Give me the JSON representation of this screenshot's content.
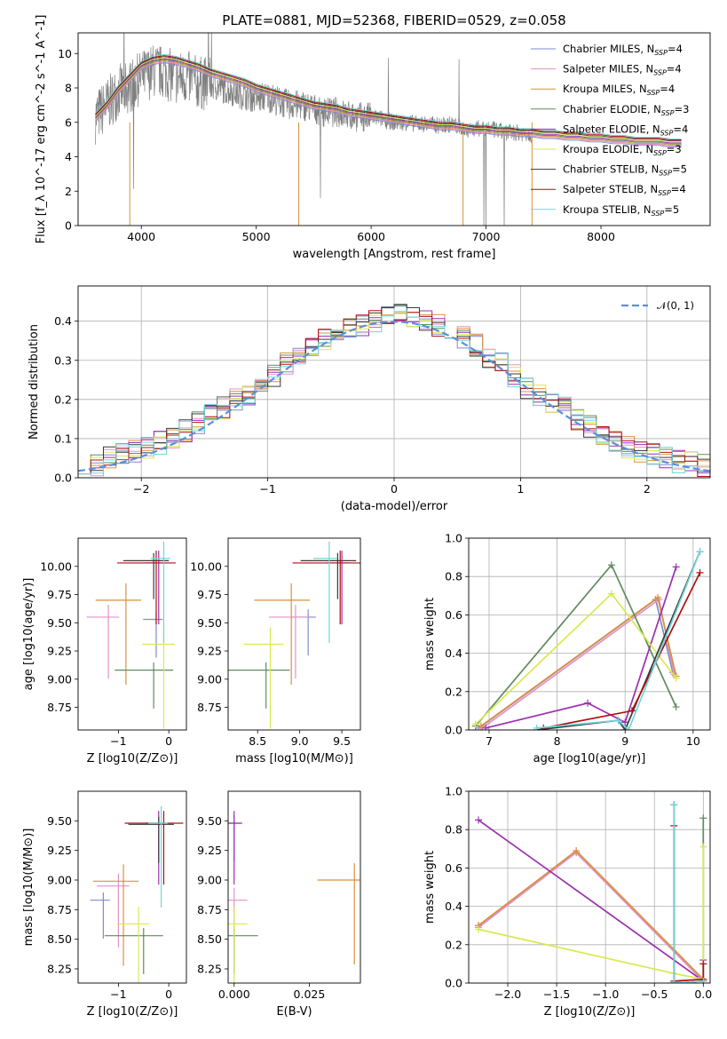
{
  "figure": {
    "title": "PLATE=0881, MJD=52368, FIBERID=0529, z=0.058"
  },
  "legend_labels": [
    "Chabrier MILES, N_SSP=4",
    "Salpeter MILES, N_SSP=4",
    "Kroupa MILES, N_SSP=4",
    "Chabrier ELODIE, N_SSP=3",
    "Salpeter ELODIE, N_SSP=4",
    "Kroupa ELODIE, N_SSP=3",
    "Chabrier STELIB, N_SSP=5",
    "Salpeter STELIB, N_SSP=4",
    "Kroupa STELIB, N_SSP=5"
  ],
  "colors": {
    "data": "#808080",
    "models": [
      "#7e8cc8",
      "#e392c8",
      "#d9913c",
      "#5e8c5e",
      "#9b2fae",
      "#d9e94d",
      "#3a3a3a",
      "#b01010",
      "#6fd6dc"
    ],
    "gauss": "#5b8fd9"
  },
  "chart_data": [
    {
      "id": "spectrum",
      "type": "line",
      "xlabel": "wavelength [Angstrom, rest frame]",
      "ylabel": "Flux [f_λ 10^-17 erg cm^-2 s^-1 A^-1]",
      "xlim": [
        3450,
        8950
      ],
      "ylim": [
        0,
        11.2
      ],
      "xticks": [
        "4000",
        "5000",
        "6000",
        "7000",
        "8000"
      ],
      "yticks": [
        "0",
        "2",
        "4",
        "6",
        "8",
        "10"
      ],
      "grid": false,
      "legend_position": "upper-right",
      "data_series": {
        "name": "data",
        "x": [
          3600,
          3700,
          3800,
          3900,
          4000,
          4100,
          4200,
          4300,
          4400,
          4500,
          4600,
          4700,
          4800,
          4900,
          5000,
          5100,
          5200,
          5300,
          5400,
          5500,
          5600,
          5700,
          5800,
          5900,
          6000,
          6100,
          6200,
          6300,
          6400,
          6500,
          6600,
          6700,
          6800,
          6900,
          7000,
          7100,
          7200,
          7300,
          7400
        ],
        "y": [
          6.3,
          7.0,
          7.8,
          8.1,
          8.6,
          9.0,
          8.9,
          8.6,
          8.6,
          8.3,
          8.2,
          8.0,
          7.8,
          7.6,
          7.4,
          7.5,
          7.2,
          7.0,
          7.0,
          6.8,
          6.6,
          6.6,
          6.4,
          6.3,
          6.3,
          6.2,
          6.0,
          6.0,
          5.9,
          5.9,
          5.8,
          5.9,
          5.6,
          5.6,
          5.7,
          5.5,
          5.4,
          5.4,
          5.3
        ]
      },
      "model_curve": {
        "x": [
          3600,
          3700,
          3800,
          3900,
          4000,
          4100,
          4200,
          4300,
          4400,
          4500,
          4600,
          4700,
          4800,
          4900,
          5000,
          5100,
          5200,
          5300,
          5400,
          5500,
          5600,
          5700,
          5800,
          5900,
          6000,
          6100,
          6200,
          6300,
          6400,
          6500,
          6600,
          6700,
          6800,
          6900,
          7000,
          7100,
          7200,
          7300,
          7400,
          7500,
          7600,
          7700,
          7800,
          7900,
          8000,
          8100,
          8200,
          8300,
          8400,
          8500,
          8600,
          8700
        ],
        "y": [
          6.3,
          7.0,
          7.9,
          8.6,
          9.3,
          9.6,
          9.7,
          9.6,
          9.4,
          9.2,
          8.9,
          8.7,
          8.5,
          8.3,
          8.0,
          7.8,
          7.6,
          7.4,
          7.2,
          7.0,
          6.9,
          6.8,
          6.6,
          6.5,
          6.4,
          6.3,
          6.2,
          6.1,
          6.0,
          5.9,
          5.8,
          5.8,
          5.7,
          5.6,
          5.6,
          5.5,
          5.5,
          5.4,
          5.4,
          5.3,
          5.3,
          5.2,
          5.2,
          5.1,
          5.1,
          5.0,
          5.0,
          4.9,
          4.9,
          4.9,
          4.8,
          4.8
        ]
      }
    },
    {
      "id": "residuals",
      "type": "line",
      "xlabel": "(data-model)/error",
      "ylabel": "Normed distribution",
      "xlim": [
        -2.5,
        2.5
      ],
      "ylim": [
        0,
        0.49
      ],
      "xticks": [
        "−2",
        "−1",
        "0",
        "1",
        "2"
      ],
      "yticks": [
        "0.0",
        "0.1",
        "0.2",
        "0.3",
        "0.4"
      ],
      "grid": true,
      "legend_label": "𝒩(0, 1)",
      "legend_position": "upper-right",
      "bin_width": 0.1,
      "hist_base": [
        0.04,
        0.03,
        0.05,
        0.06,
        0.07,
        0.08,
        0.09,
        0.1,
        0.12,
        0.14,
        0.16,
        0.18,
        0.2,
        0.21,
        0.23,
        0.26,
        0.29,
        0.31,
        0.33,
        0.35,
        0.37,
        0.38,
        0.39,
        0.4,
        0.41,
        0.42,
        0.41,
        0.4,
        0.39,
        0.38,
        0.36,
        0.34,
        0.31,
        0.29,
        0.26,
        0.23,
        0.21,
        0.19,
        0.18,
        0.15,
        0.13,
        0.11,
        0.09,
        0.08,
        0.07,
        0.06,
        0.05,
        0.04,
        0.04,
        0.03
      ]
    },
    {
      "id": "age_vs_Z",
      "type": "scatter",
      "xlabel": "Z [log10(Z/Z⊙)]",
      "ylabel": "age  [log10(age/yr)]",
      "xlim": [
        -1.8,
        0.35
      ],
      "ylim": [
        8.55,
        10.25
      ],
      "xticks": [
        "−1",
        "0"
      ],
      "yticks": [
        "8.75",
        "9.00",
        "9.25",
        "9.50",
        "9.75",
        "10.00"
      ],
      "points": [
        {
          "x": -0.25,
          "y": 9.53
        },
        {
          "x": -1.2,
          "y": 9.55
        },
        {
          "x": -0.85,
          "y": 9.7
        },
        {
          "x": -0.3,
          "y": 9.08
        },
        {
          "x": -0.2,
          "y": 10.03
        },
        {
          "x": -0.1,
          "y": 9.31
        },
        {
          "x": -0.3,
          "y": 10.05
        },
        {
          "x": -0.25,
          "y": 10.03
        },
        {
          "x": -0.1,
          "y": 10.07
        }
      ]
    },
    {
      "id": "age_vs_mass",
      "type": "scatter",
      "xlabel": "mass [log10(M/M⊙)]",
      "ylabel": "",
      "xlim": [
        8.15,
        9.72
      ],
      "ylim": [
        8.55,
        10.25
      ],
      "xticks": [
        "8.5",
        "9.0",
        "9.5"
      ],
      "yticks": [
        "8.75",
        "9.00",
        "9.25",
        "9.50",
        "9.75",
        "10.00"
      ],
      "points": [
        {
          "x": 9.1,
          "y": 9.55
        },
        {
          "x": 8.95,
          "y": 9.55
        },
        {
          "x": 8.9,
          "y": 9.7
        },
        {
          "x": 8.6,
          "y": 9.08
        },
        {
          "x": 9.5,
          "y": 10.03
        },
        {
          "x": 8.65,
          "y": 9.31
        },
        {
          "x": 9.45,
          "y": 10.05
        },
        {
          "x": 9.48,
          "y": 10.03
        },
        {
          "x": 9.35,
          "y": 10.07
        }
      ]
    },
    {
      "id": "massweight_vs_age",
      "type": "line",
      "xlabel": "age  [log10(age/yr)]",
      "ylabel": "mass weight",
      "xlim": [
        6.7,
        10.25
      ],
      "ylim": [
        0,
        1.0
      ],
      "xticks": [
        "7",
        "8",
        "9",
        "10"
      ],
      "yticks": [
        "0.0",
        "0.2",
        "0.4",
        "0.6",
        "0.8",
        "1.0"
      ],
      "grid": true,
      "series": [
        {
          "x": [
            6.85,
            9.45,
            9.7
          ],
          "y": [
            0.01,
            0.68,
            0.3
          ]
        },
        {
          "x": [
            6.9,
            9.5,
            9.72
          ],
          "y": [
            0.01,
            0.68,
            0.29
          ]
        },
        {
          "x": [
            6.88,
            9.48,
            9.75
          ],
          "y": [
            0.02,
            0.69,
            0.28
          ]
        },
        {
          "x": [
            6.8,
            8.8,
            9.75
          ],
          "y": [
            0.02,
            0.86,
            0.12
          ]
        },
        {
          "x": [
            6.95,
            8.45,
            9.0,
            9.75
          ],
          "y": [
            0.01,
            0.14,
            0.04,
            0.85
          ]
        },
        {
          "x": [
            6.8,
            8.8,
            9.75
          ],
          "y": [
            0.03,
            0.71,
            0.27
          ]
        },
        {
          "x": [
            7.7,
            8.9,
            9.0,
            10.1
          ],
          "y": [
            0.0,
            0.05,
            0.0,
            0.93
          ]
        },
        {
          "x": [
            7.8,
            9.1,
            10.1
          ],
          "y": [
            0.01,
            0.1,
            0.82
          ]
        },
        {
          "x": [
            7.7,
            8.9,
            9.05,
            10.1
          ],
          "y": [
            0.01,
            0.05,
            0.0,
            0.93
          ]
        }
      ]
    },
    {
      "id": "mass_vs_Z",
      "type": "scatter",
      "xlabel": "Z [log10(Z/Z⊙)]",
      "ylabel": "mass [log10(M/M⊙)]",
      "xlim": [
        -1.8,
        0.35
      ],
      "ylim": [
        8.13,
        9.75
      ],
      "xticks": [
        "−1",
        "0"
      ],
      "yticks": [
        "8.25",
        "8.50",
        "8.75",
        "9.00",
        "9.25",
        "9.50"
      ],
      "points": [
        {
          "x": -1.3,
          "y": 8.83
        },
        {
          "x": -1.0,
          "y": 8.95
        },
        {
          "x": -0.9,
          "y": 8.99
        },
        {
          "x": -0.5,
          "y": 8.53
        },
        {
          "x": -0.2,
          "y": 9.48
        },
        {
          "x": -0.6,
          "y": 8.63
        },
        {
          "x": -0.2,
          "y": 9.47
        },
        {
          "x": -0.1,
          "y": 9.48
        },
        {
          "x": -0.15,
          "y": 9.48
        }
      ]
    },
    {
      "id": "mass_vs_EBV",
      "type": "scatter",
      "xlabel": "E(B-V)",
      "ylabel": "",
      "xlim": [
        -0.002,
        0.042
      ],
      "ylim": [
        8.13,
        9.75
      ],
      "xticks": [
        "0.000",
        "0.025"
      ],
      "yticks": [
        "8.25",
        "8.50",
        "8.75",
        "9.00",
        "9.25",
        "9.50"
      ],
      "points": [
        {
          "x": 0.0,
          "y": 9.48
        },
        {
          "x": 0.0,
          "y": 8.83
        },
        {
          "x": 0.04,
          "y": 9.0
        },
        {
          "x": 0.0,
          "y": 8.53
        },
        {
          "x": 0.0,
          "y": 9.48
        },
        {
          "x": 0.0,
          "y": 8.63
        }
      ]
    },
    {
      "id": "massweight_vs_Z",
      "type": "line",
      "xlabel": "Z [log10(Z/Z⊙)]",
      "ylabel": "mass weight",
      "xlim": [
        -2.4,
        0.07
      ],
      "ylim": [
        0,
        1.0
      ],
      "xticks": [
        "−2.0",
        "−1.5",
        "−1.0",
        "−0.5",
        "0.0"
      ],
      "yticks": [
        "0.0",
        "0.2",
        "0.4",
        "0.6",
        "0.8",
        "1.0"
      ],
      "grid": true,
      "series": [
        {
          "x": [
            -2.3,
            -1.3,
            0.0
          ],
          "y": [
            0.3,
            0.68,
            0.01
          ]
        },
        {
          "x": [
            -2.3,
            -1.3,
            0.0
          ],
          "y": [
            0.29,
            0.68,
            0.01
          ]
        },
        {
          "x": [
            -2.3,
            -1.3,
            0.0
          ],
          "y": [
            0.3,
            0.69,
            0.02
          ]
        },
        {
          "x": [
            0.0,
            0.0
          ],
          "y": [
            0.86,
            0.02
          ]
        },
        {
          "x": [
            -2.3,
            0.0,
            0.0
          ],
          "y": [
            0.85,
            0.01,
            0.12
          ]
        },
        {
          "x": [
            -2.3,
            -0.3,
            0.0,
            0.0
          ],
          "y": [
            0.28,
            0.05,
            0.02,
            0.71
          ]
        },
        {
          "x": [
            -0.3,
            -0.3,
            0.0
          ],
          "y": [
            0.93,
            0.0,
            0.01
          ]
        },
        {
          "x": [
            -0.3,
            -0.3,
            0.0,
            0.0
          ],
          "y": [
            0.82,
            0.01,
            0.02,
            0.1
          ]
        },
        {
          "x": [
            -0.3,
            -0.3,
            0.0
          ],
          "y": [
            0.93,
            0.0,
            0.01
          ]
        }
      ]
    }
  ]
}
